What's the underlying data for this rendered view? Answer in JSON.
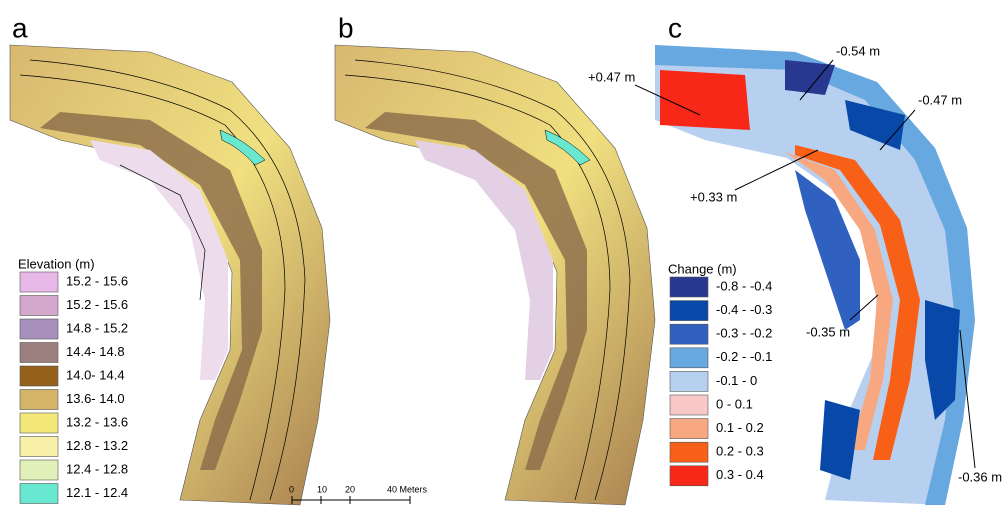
{
  "panels": [
    {
      "label": "a"
    },
    {
      "label": "b"
    },
    {
      "label": "c"
    }
  ],
  "elevation_legend": {
    "title": "Elevation (m)",
    "items": [
      {
        "label": "15.2 - 15.6",
        "color": "#e8b8e8"
      },
      {
        "label": "15.2 - 15.6",
        "color": "#d4a8cc"
      },
      {
        "label": "14.8 - 15.2",
        "color": "#a890bc"
      },
      {
        "label": "14.4- 14.8",
        "color": "#9c8080"
      },
      {
        "label": "14.0- 14.4",
        "color": "#94601c"
      },
      {
        "label": "13.6- 14.0",
        "color": "#d4b468"
      },
      {
        "label": "13.2 - 13.6",
        "color": "#f4e878"
      },
      {
        "label": "12.8 - 13.2",
        "color": "#f8f0a8"
      },
      {
        "label": "12.4 - 12.8",
        "color": "#e0f0b8"
      },
      {
        "label": "12.1 - 12.4",
        "color": "#68e8d0"
      }
    ]
  },
  "change_legend": {
    "title": "Change (m)",
    "items": [
      {
        "label": "-0.8 - -0.4",
        "color": "#283890"
      },
      {
        "label": "-0.4 - -0.3",
        "color": "#0848a8"
      },
      {
        "label": "-0.3 - -0.2",
        "color": "#3060c0"
      },
      {
        "label": "-0.2 - -0.1",
        "color": "#68a8e0"
      },
      {
        "label": "-0.1 - 0",
        "color": "#b8d0f0"
      },
      {
        "label": "0 - 0.1",
        "color": "#f8c8c8"
      },
      {
        "label": "0.1 - 0.2",
        "color": "#f8a880"
      },
      {
        "label": "0.2 - 0.3",
        "color": "#f86018"
      },
      {
        "label": "0.3 - 0.4",
        "color": "#f82818"
      }
    ]
  },
  "annotations": [
    "+0.47 m",
    "-0.54 m",
    "-0.47 m",
    "+0.33 m",
    "-0.35 m",
    "-0.36 m"
  ],
  "scale_bar": {
    "labels": [
      "0",
      "10",
      "20",
      "40 Meters"
    ]
  }
}
